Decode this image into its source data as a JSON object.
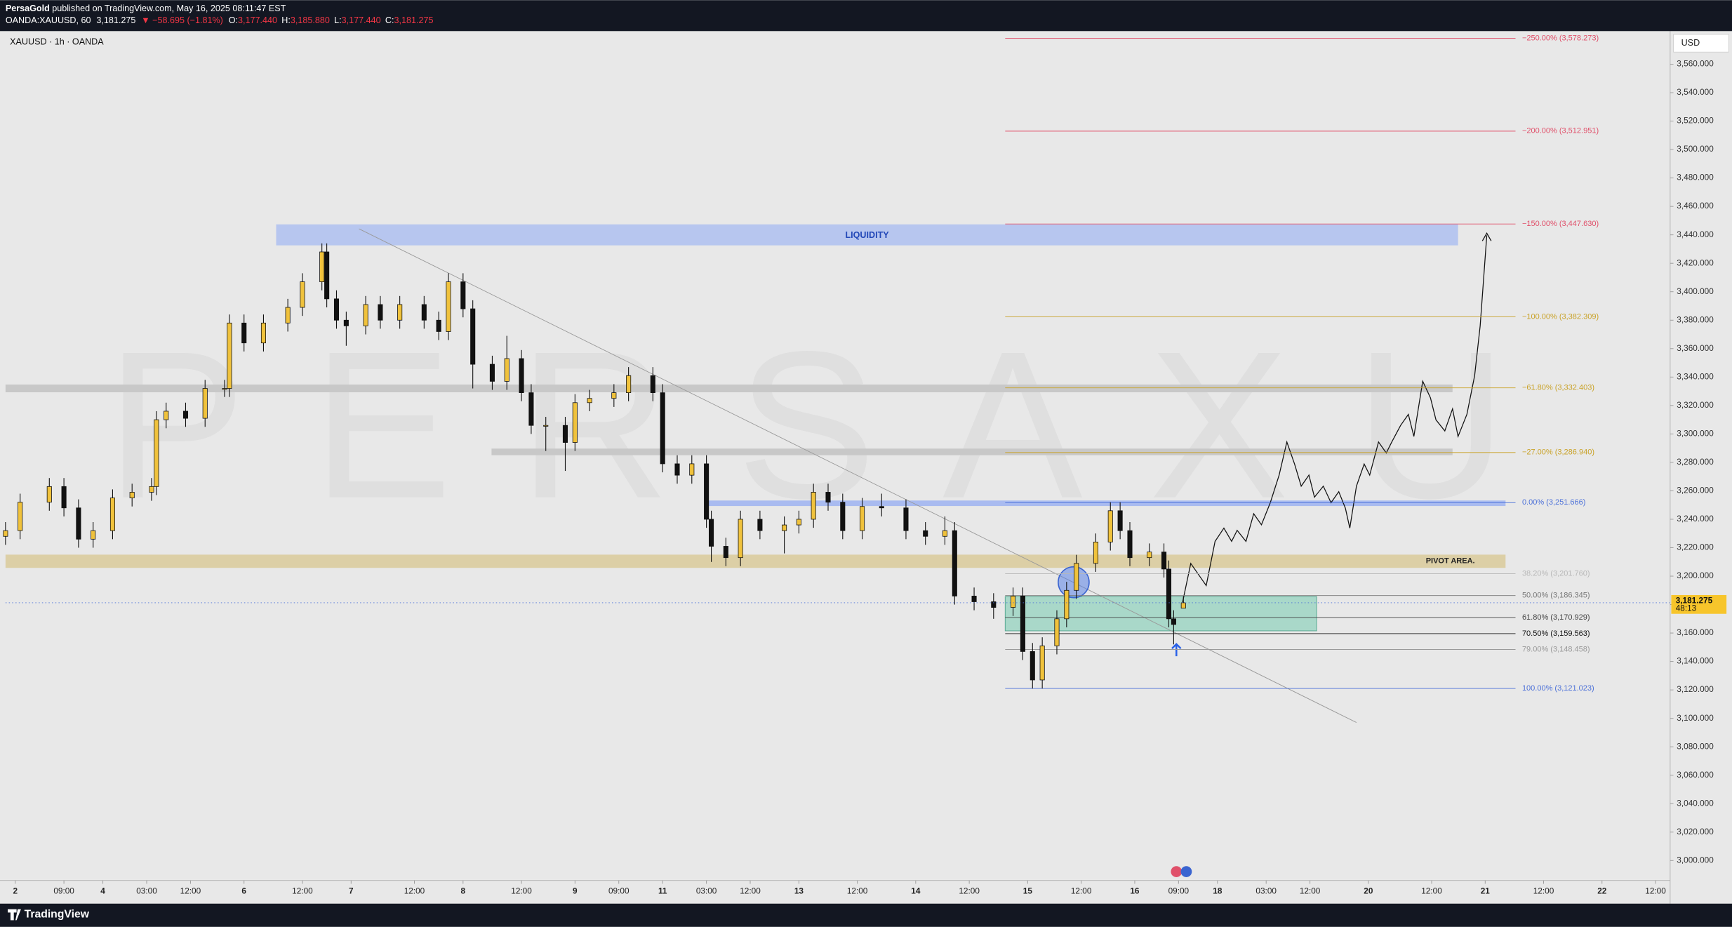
{
  "header": {
    "publisher": "PersaGold",
    "published": " published on TradingView.com, May 16, 2025 08:11:47 EST",
    "symbol": "OANDA:XAUUSD, 60",
    "last": "3,181.275",
    "change": "▼ −58.695 (−1.81%)",
    "ohlc": [
      {
        "label": "O:",
        "value": "3,177.440"
      },
      {
        "label": "H:",
        "value": "3,185.880"
      },
      {
        "label": "L:",
        "value": "3,177.440"
      },
      {
        "label": "C:",
        "value": "3,181.275"
      }
    ]
  },
  "footer": {
    "brand": "TradingView"
  },
  "chart_data": {
    "type": "candlestick",
    "title": "XAUUSD · 1h · OANDA",
    "currency": "USD",
    "watermark": "PERSAXU",
    "up_color": "#f0c23c",
    "down_color": "#111111",
    "grid": false,
    "x": [
      0,
      3,
      9,
      12,
      15,
      18,
      22,
      26,
      30,
      31,
      33,
      37,
      41,
      45,
      46,
      49,
      53,
      58,
      61,
      65,
      66,
      68,
      70,
      74,
      77,
      81,
      86,
      89,
      91,
      94,
      96,
      100,
      103,
      106,
      108,
      111,
      115,
      117,
      120,
      125,
      128,
      133,
      135,
      138,
      141,
      144,
      145,
      148,
      151,
      155,
      160,
      163,
      166,
      169,
      172,
      176,
      180,
      185,
      189,
      193,
      195,
      199,
      203,
      207,
      209,
      211,
      213,
      216,
      218,
      220,
      224,
      227,
      229,
      231,
      235,
      238,
      239,
      240,
      242
    ],
    "open": [
      3228,
      3232,
      3252,
      3263,
      3248,
      3226,
      3232,
      3255,
      3259,
      3263,
      3310,
      3316,
      3311,
      3332,
      3332,
      3378,
      3364,
      3378,
      3389,
      3407,
      3428,
      3395,
      3380,
      3376,
      3391,
      3380,
      3391,
      3380,
      3372,
      3407,
      3388,
      3349,
      3337,
      3353,
      3329,
      3306,
      3306,
      3294,
      3322,
      3325,
      3329,
      3341,
      3329,
      3279,
      3271,
      3279,
      3240,
      3221,
      3213,
      3240,
      3232,
      3236,
      3240,
      3259,
      3252,
      3232,
      3249,
      3248,
      3232,
      3228,
      3232,
      3186,
      3182,
      3178,
      3186,
      3147,
      3127,
      3151,
      3170,
      3190,
      3209,
      3224,
      3246,
      3232,
      3213,
      3217,
      3205,
      3170,
      3177.44
    ],
    "high": [
      3238,
      3258,
      3269,
      3269,
      3254,
      3238,
      3261,
      3265,
      3269,
      3316,
      3322,
      3322,
      3338,
      3338,
      3384,
      3384,
      3384,
      3395,
      3413,
      3434,
      3434,
      3401,
      3386,
      3397,
      3397,
      3397,
      3397,
      3386,
      3413,
      3413,
      3394,
      3355,
      3369,
      3359,
      3335,
      3312,
      3312,
      3328,
      3331,
      3335,
      3347,
      3347,
      3335,
      3285,
      3285,
      3285,
      3246,
      3227,
      3246,
      3246,
      3242,
      3246,
      3265,
      3265,
      3258,
      3255,
      3258,
      3254,
      3238,
      3242,
      3238,
      3192,
      3188,
      3192,
      3192,
      3153,
      3157,
      3176,
      3196,
      3215,
      3230,
      3252,
      3252,
      3238,
      3223,
      3223,
      3211,
      3176,
      3185.88
    ],
    "low": [
      3222,
      3226,
      3246,
      3242,
      3220,
      3220,
      3226,
      3249,
      3253,
      3257,
      3304,
      3305,
      3305,
      3326,
      3326,
      3358,
      3358,
      3372,
      3383,
      3401,
      3389,
      3374,
      3362,
      3370,
      3374,
      3374,
      3374,
      3366,
      3366,
      3382,
      3332,
      3331,
      3331,
      3323,
      3300,
      3288,
      3274,
      3288,
      3316,
      3319,
      3323,
      3323,
      3273,
      3265,
      3265,
      3234,
      3210,
      3207,
      3207,
      3226,
      3216,
      3230,
      3234,
      3246,
      3226,
      3226,
      3242,
      3226,
      3222,
      3222,
      3180,
      3176,
      3170,
      3172,
      3141,
      3121,
      3121,
      3145,
      3164,
      3184,
      3203,
      3218,
      3226,
      3207,
      3207,
      3199,
      3164,
      3152,
      3177.44
    ],
    "close": [
      3232,
      3252,
      3263,
      3248,
      3226,
      3232,
      3255,
      3259,
      3263,
      3310,
      3316,
      3311,
      3332,
      3332,
      3378,
      3364,
      3378,
      3389,
      3407,
      3428,
      3395,
      3380,
      3376,
      3391,
      3380,
      3391,
      3380,
      3372,
      3407,
      3388,
      3349,
      3337,
      3353,
      3329,
      3306,
      3306,
      3294,
      3322,
      3325,
      3329,
      3341,
      3329,
      3279,
      3271,
      3279,
      3240,
      3221,
      3213,
      3240,
      3232,
      3236,
      3240,
      3259,
      3252,
      3232,
      3249,
      3248,
      3232,
      3228,
      3232,
      3186,
      3182,
      3178,
      3186,
      3147,
      3127,
      3151,
      3170,
      3190,
      3209,
      3224,
      3246,
      3232,
      3213,
      3217,
      3205,
      3170,
      3166,
      3181.275
    ],
    "xlim": [
      0,
      342
    ],
    "xticks": [
      {
        "value": 2,
        "label": "2"
      },
      {
        "value": 12,
        "label": "09:00"
      },
      {
        "value": 20,
        "label": "4"
      },
      {
        "value": 29,
        "label": "03:00"
      },
      {
        "value": 38,
        "label": "12:00"
      },
      {
        "value": 49,
        "label": "6"
      },
      {
        "value": 61,
        "label": "12:00"
      },
      {
        "value": 71,
        "label": "7"
      },
      {
        "value": 84,
        "label": "12:00"
      },
      {
        "value": 94,
        "label": "8"
      },
      {
        "value": 106,
        "label": "12:00"
      },
      {
        "value": 117,
        "label": "9"
      },
      {
        "value": 126,
        "label": "09:00"
      },
      {
        "value": 135,
        "label": "11"
      },
      {
        "value": 144,
        "label": "03:00"
      },
      {
        "value": 153,
        "label": "12:00"
      },
      {
        "value": 163,
        "label": "13"
      },
      {
        "value": 175,
        "label": "12:00"
      },
      {
        "value": 187,
        "label": "14"
      },
      {
        "value": 198,
        "label": "12:00"
      },
      {
        "value": 210,
        "label": "15"
      },
      {
        "value": 221,
        "label": "12:00"
      },
      {
        "value": 232,
        "label": "16"
      },
      {
        "value": 241,
        "label": "09:00"
      },
      {
        "value": 249,
        "label": "18"
      },
      {
        "value": 259,
        "label": "03:00"
      },
      {
        "value": 268,
        "label": "12:00"
      },
      {
        "value": 280,
        "label": "20"
      },
      {
        "value": 293,
        "label": "12:00"
      },
      {
        "value": 304,
        "label": "21"
      },
      {
        "value": 316,
        "label": "12:00"
      },
      {
        "value": 328,
        "label": "22"
      },
      {
        "value": 339,
        "label": "12:00"
      }
    ],
    "ylim": [
      2986,
      3583.3
    ],
    "yticks": [
      {
        "value": 3000,
        "label": "3,000.000"
      },
      {
        "value": 3020,
        "label": "3,020.000"
      },
      {
        "value": 3040,
        "label": "3,040.000"
      },
      {
        "value": 3060,
        "label": "3,060.000"
      },
      {
        "value": 3080,
        "label": "3,080.000"
      },
      {
        "value": 3100,
        "label": "3,100.000"
      },
      {
        "value": 3120,
        "label": "3,120.000"
      },
      {
        "value": 3140,
        "label": "3,140.000"
      },
      {
        "value": 3160,
        "label": "3,160.000"
      },
      {
        "value": 3180,
        "label": "3,180.000"
      },
      {
        "value": 3200,
        "label": "3,200.000"
      },
      {
        "value": 3220,
        "label": "3,220.000"
      },
      {
        "value": 3240,
        "label": "3,240.000"
      },
      {
        "value": 3260,
        "label": "3,260.000"
      },
      {
        "value": 3280,
        "label": "3,280.000"
      },
      {
        "value": 3300,
        "label": "3,300.000"
      },
      {
        "value": 3320,
        "label": "3,320.000"
      },
      {
        "value": 3340,
        "label": "3,340.000"
      },
      {
        "value": 3360,
        "label": "3,360.000"
      },
      {
        "value": 3380,
        "label": "3,380.000"
      },
      {
        "value": 3400,
        "label": "3,400.000"
      },
      {
        "value": 3420,
        "label": "3,420.000"
      },
      {
        "value": 3440,
        "label": "3,440.000"
      },
      {
        "value": 3460,
        "label": "3,460.000"
      },
      {
        "value": 3480,
        "label": "3,480.000"
      },
      {
        "value": 3500,
        "label": "3,500.000"
      },
      {
        "value": 3520,
        "label": "3,520.000"
      },
      {
        "value": 3540,
        "label": "3,540.000"
      },
      {
        "value": 3560,
        "label": "3,560.000"
      }
    ],
    "current_price": {
      "value": 3181.275,
      "label": "3,181.275",
      "countdown": "48:13",
      "color": "#f7c52b"
    },
    "fib_levels": [
      {
        "value": 3578.273,
        "label": "−250.00% (3,578.273)",
        "color": "#e0506a"
      },
      {
        "value": 3512.951,
        "label": "−200.00% (3,512.951)",
        "color": "#e0506a"
      },
      {
        "value": 3447.63,
        "label": "−150.00% (3,447.630)",
        "color": "#e0506a"
      },
      {
        "value": 3382.309,
        "label": "−100.00% (3,382.309)",
        "color": "#c9a227"
      },
      {
        "value": 3332.403,
        "label": "−61.80% (3,332.403)",
        "color": "#c9a227"
      },
      {
        "value": 3286.94,
        "label": "−27.00% (3,286.940)",
        "color": "#c9a227"
      },
      {
        "value": 3251.666,
        "label": "0.00% (3,251.666)",
        "color": "#4a6fd8"
      },
      {
        "value": 3201.76,
        "label": "38.20% (3,201.760)",
        "color": "#b8b8b8"
      },
      {
        "value": 3186.345,
        "label": "50.00% (3,186.345)",
        "color": "#777777"
      },
      {
        "value": 3170.929,
        "label": "61.80% (3,170.929)",
        "color": "#444444"
      },
      {
        "value": 3159.563,
        "label": "70.50% (3,159.563)",
        "color": "#111111"
      },
      {
        "value": 3148.458,
        "label": "79.00% (3,148.458)",
        "color": "#999999"
      },
      {
        "value": 3121.023,
        "label": "100.00% (3,121.023)",
        "color": "#4a6fd8"
      }
    ],
    "zones": {
      "liquidity": "LIQUIDITY",
      "pivot": "PIVOT AREA."
    }
  }
}
